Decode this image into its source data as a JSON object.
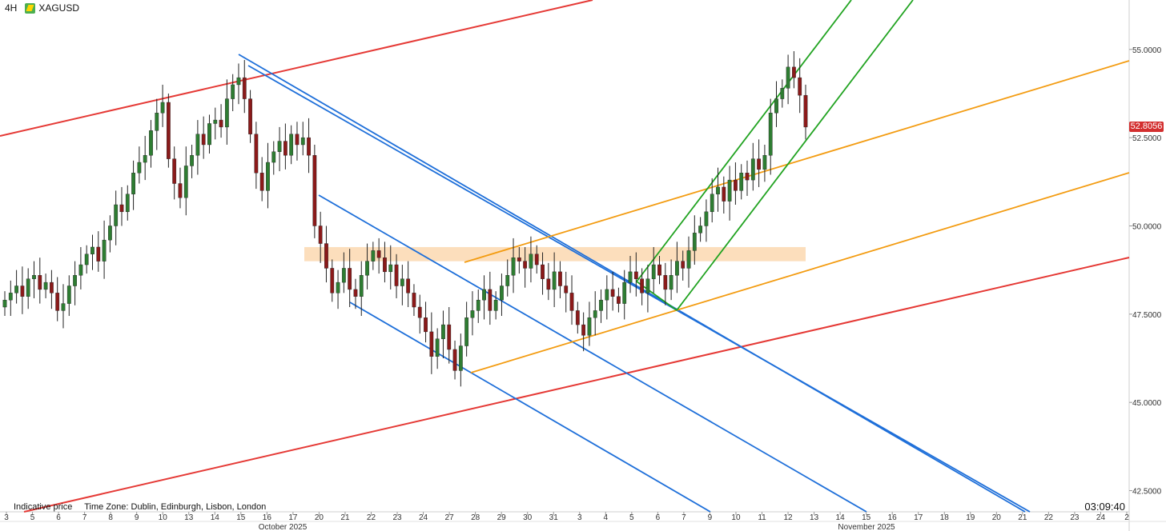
{
  "header": {
    "timeframe": "4H",
    "symbol": "XAGUSD"
  },
  "footer": {
    "indicative": "Indicative price",
    "timezone": "Time Zone: Dublin, Edinburgh, Lisbon, London",
    "clock": "03:09:40"
  },
  "colors": {
    "bull": "#2e7d32",
    "bear": "#8b1a1a",
    "red_channel": "#e53935",
    "blue_channel": "#1e6fd9",
    "green_channel": "#21a321",
    "orange_channel": "#f39c12",
    "zone": "#fbd8b0",
    "price_tag": "#d32f2f"
  },
  "chart_data": {
    "type": "candlestick",
    "title": "",
    "xlabel": "",
    "ylabel": "",
    "symbol": "XAGUSD",
    "timeframe": "4H",
    "last_price": "52.8056",
    "ylim": [
      41.9,
      56.4
    ],
    "y_ticks": [
      "55.0000",
      "52.5000",
      "50.0000",
      "47.5000",
      "45.0000",
      "42.5000"
    ],
    "x_tick_labels": [
      "3",
      "5",
      "6",
      "7",
      "8",
      "9",
      "10",
      "13",
      "14",
      "15",
      "16",
      "17",
      "20",
      "21",
      "22",
      "23",
      "24",
      "27",
      "28",
      "29",
      "30",
      "31",
      "3",
      "4",
      "5",
      "6",
      "7",
      "9",
      "10",
      "11",
      "12",
      "13",
      "14",
      "15",
      "16",
      "17",
      "18",
      "19",
      "20",
      "21",
      "22",
      "23",
      "24",
      "2"
    ],
    "month_labels": [
      "October 2025",
      "November 2025"
    ],
    "resistance_zone": [
      49.0,
      49.4
    ],
    "closes": [
      47.9,
      48.1,
      48.3,
      48.0,
      48.5,
      48.6,
      48.2,
      48.4,
      48.1,
      47.6,
      47.8,
      48.3,
      48.6,
      48.9,
      49.2,
      49.4,
      49.0,
      49.6,
      50.0,
      50.6,
      50.4,
      50.9,
      51.5,
      51.8,
      52.0,
      52.7,
      53.2,
      53.5,
      51.9,
      51.2,
      50.8,
      51.7,
      52.0,
      52.6,
      52.3,
      52.9,
      53.0,
      52.8,
      53.6,
      54.0,
      54.2,
      53.6,
      52.6,
      51.5,
      51.0,
      51.8,
      52.1,
      52.4,
      52.0,
      52.6,
      52.3,
      52.5,
      52.0,
      50.0,
      49.5,
      48.8,
      48.1,
      48.4,
      48.8,
      48.2,
      48.0,
      48.6,
      49.0,
      49.3,
      49.1,
      48.7,
      48.9,
      48.3,
      48.5,
      48.1,
      47.7,
      47.4,
      47.0,
      46.3,
      46.8,
      47.2,
      46.5,
      45.9,
      46.6,
      47.4,
      47.6,
      47.9,
      48.2,
      47.6,
      47.9,
      48.3,
      48.6,
      49.1,
      49.0,
      48.8,
      49.2,
      48.9,
      48.5,
      48.2,
      48.7,
      48.3,
      48.1,
      47.6,
      47.2,
      46.9,
      47.4,
      47.6,
      47.9,
      48.2,
      48.0,
      47.8,
      48.4,
      48.7,
      48.5,
      48.1,
      48.5,
      48.9,
      48.6,
      48.2,
      48.6,
      49.0,
      48.8,
      49.3,
      49.8,
      50.0,
      50.4,
      50.9,
      51.1,
      50.7,
      51.3,
      51.0,
      51.5,
      51.3,
      51.9,
      51.6,
      52.0,
      53.2,
      53.6,
      53.9,
      54.5,
      54.2,
      53.7,
      52.8
    ]
  }
}
